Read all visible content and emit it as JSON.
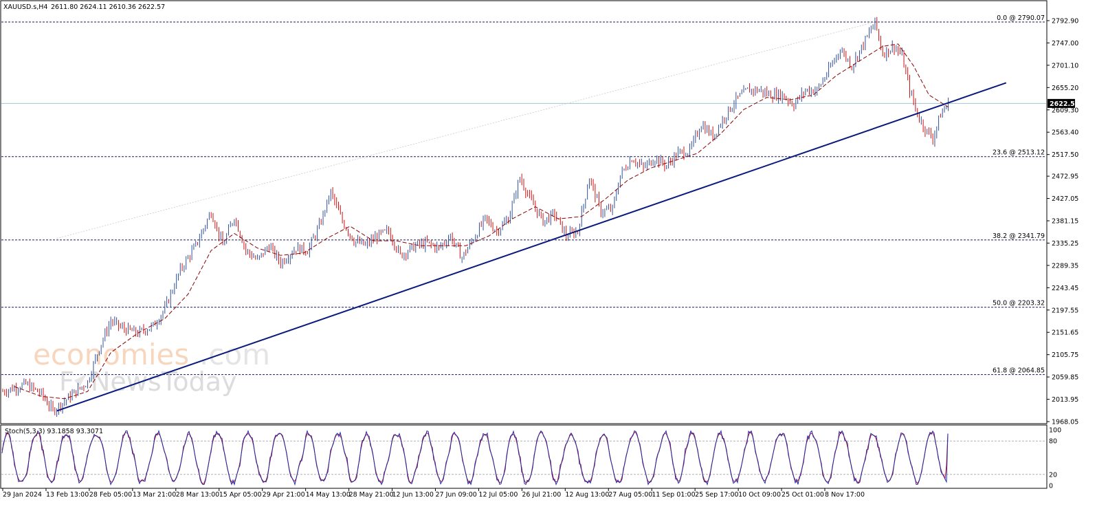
{
  "header": {
    "symbol": "XAUUSD.s,H4",
    "ohlc": "2611.80 2624.11 2610.36 2622.57"
  },
  "stoch_label": "Stoch(5,3,3) 93.1858 93.3071",
  "current_price": "2622.57",
  "watermark": {
    "line1_a": "economies",
    "line1_b": ".com",
    "line2_a": "F",
    "line2_b": "NewsToday"
  },
  "colors": {
    "bull_candle": "#2f4f9a",
    "bear_candle": "#d01010",
    "moving_average": "#8b0000",
    "trendline": "#0a1a7a",
    "fib_line": "#1a1a5a",
    "price_tag_bg": "#000000",
    "stoch_main": "#1a2aa8",
    "stoch_signal": "#cc1020"
  },
  "chart_data": {
    "type": "candlestick",
    "instrument": "XAUUSD.s",
    "timeframe": "H4",
    "price_axis": {
      "ylim": [
        1968.05,
        2792.9
      ],
      "tick_labels": [
        "2792.90",
        "2747.00",
        "2701.10",
        "2655.20",
        "2609.30",
        "2563.40",
        "2517.50",
        "2472.95",
        "2427.05",
        "2381.15",
        "2335.25",
        "2289.35",
        "2243.45",
        "2197.55",
        "2151.65",
        "2105.75",
        "2059.85",
        "2013.95",
        "1968.05"
      ]
    },
    "time_axis": {
      "tick_labels": [
        "29 Jan 2024",
        "13 Feb 13:00",
        "28 Feb 05:00",
        "13 Mar 21:00",
        "28 Mar 13:00",
        "15 Apr 05:00",
        "29 Apr 21:00",
        "14 May 13:00",
        "28 May 21:00",
        "12 Jun 13:00",
        "27 Jun 09:00",
        "12 Jul 05:00",
        "26 Jul 21:00",
        "12 Aug 13:00",
        "27 Aug 05:00",
        "11 Sep 01:00",
        "25 Sep 17:00",
        "10 Oct 09:00",
        "25 Oct 01:00",
        "8 Nov 17:00"
      ]
    },
    "fibonacci_levels": [
      {
        "label": "0.0 @ 2790.07",
        "value": 2790.07
      },
      {
        "label": "23.6 @ 2513.12",
        "value": 2513.12
      },
      {
        "label": "38.2 @ 2341.79",
        "value": 2341.79
      },
      {
        "label": "50.0 @ 2203.32",
        "value": 2203.32
      },
      {
        "label": "61.8 @ 2064.85",
        "value": 2064.85
      }
    ],
    "price_path": [
      [
        0,
        2030
      ],
      [
        6,
        2045
      ],
      [
        10,
        2025
      ],
      [
        13,
        1990
      ],
      [
        16,
        2010
      ],
      [
        19,
        2030
      ],
      [
        22,
        2050
      ],
      [
        25,
        2120
      ],
      [
        28,
        2175
      ],
      [
        31,
        2160
      ],
      [
        35,
        2150
      ],
      [
        39,
        2165
      ],
      [
        42,
        2200
      ],
      [
        46,
        2280
      ],
      [
        50,
        2330
      ],
      [
        54,
        2400
      ],
      [
        57,
        2330
      ],
      [
        60,
        2390
      ],
      [
        63,
        2320
      ],
      [
        66,
        2300
      ],
      [
        69,
        2330
      ],
      [
        72,
        2295
      ],
      [
        76,
        2325
      ],
      [
        79,
        2320
      ],
      [
        82,
        2370
      ],
      [
        85,
        2440
      ],
      [
        88,
        2380
      ],
      [
        91,
        2340
      ],
      [
        94,
        2330
      ],
      [
        97,
        2350
      ],
      [
        100,
        2360
      ],
      [
        103,
        2310
      ],
      [
        107,
        2330
      ],
      [
        110,
        2335
      ],
      [
        113,
        2325
      ],
      [
        116,
        2350
      ],
      [
        119,
        2305
      ],
      [
        122,
        2345
      ],
      [
        125,
        2385
      ],
      [
        128,
        2360
      ],
      [
        131,
        2385
      ],
      [
        134,
        2470
      ],
      [
        137,
        2420
      ],
      [
        140,
        2380
      ],
      [
        143,
        2395
      ],
      [
        146,
        2350
      ],
      [
        149,
        2360
      ],
      [
        152,
        2470
      ],
      [
        155,
        2400
      ],
      [
        158,
        2405
      ],
      [
        160,
        2475
      ],
      [
        163,
        2510
      ],
      [
        166,
        2490
      ],
      [
        169,
        2510
      ],
      [
        172,
        2495
      ],
      [
        175,
        2520
      ],
      [
        178,
        2525
      ],
      [
        181,
        2580
      ],
      [
        184,
        2555
      ],
      [
        187,
        2595
      ],
      [
        190,
        2630
      ],
      [
        193,
        2650
      ],
      [
        196,
        2650
      ],
      [
        199,
        2640
      ],
      [
        202,
        2640
      ],
      [
        205,
        2620
      ],
      [
        208,
        2650
      ],
      [
        211,
        2650
      ],
      [
        214,
        2690
      ],
      [
        217,
        2735
      ],
      [
        220,
        2700
      ],
      [
        223,
        2745
      ],
      [
        226,
        2790
      ],
      [
        228,
        2725
      ],
      [
        231,
        2740
      ],
      [
        233,
        2720
      ],
      [
        235,
        2650
      ],
      [
        237,
        2600
      ],
      [
        239,
        2570
      ],
      [
        241,
        2550
      ],
      [
        243,
        2600
      ],
      [
        245,
        2622.57
      ]
    ],
    "moving_average_path": [
      [
        3,
        2040
      ],
      [
        10,
        2020
      ],
      [
        16,
        2015
      ],
      [
        22,
        2030
      ],
      [
        28,
        2110
      ],
      [
        35,
        2150
      ],
      [
        42,
        2180
      ],
      [
        48,
        2230
      ],
      [
        54,
        2320
      ],
      [
        60,
        2355
      ],
      [
        66,
        2325
      ],
      [
        72,
        2310
      ],
      [
        78,
        2315
      ],
      [
        84,
        2345
      ],
      [
        90,
        2370
      ],
      [
        96,
        2340
      ],
      [
        102,
        2340
      ],
      [
        108,
        2330
      ],
      [
        114,
        2330
      ],
      [
        120,
        2330
      ],
      [
        126,
        2350
      ],
      [
        132,
        2385
      ],
      [
        138,
        2410
      ],
      [
        144,
        2385
      ],
      [
        150,
        2390
      ],
      [
        156,
        2425
      ],
      [
        162,
        2465
      ],
      [
        168,
        2490
      ],
      [
        174,
        2505
      ],
      [
        180,
        2520
      ],
      [
        186,
        2560
      ],
      [
        192,
        2610
      ],
      [
        198,
        2635
      ],
      [
        204,
        2630
      ],
      [
        210,
        2640
      ],
      [
        216,
        2680
      ],
      [
        222,
        2710
      ],
      [
        228,
        2740
      ],
      [
        232,
        2745
      ],
      [
        236,
        2700
      ],
      [
        240,
        2640
      ],
      [
        245,
        2615
      ]
    ],
    "trendline": [
      [
        14,
        1990
      ],
      [
        260,
        2665
      ]
    ],
    "stochastic": {
      "indicator": "Stoch(5,3,3)",
      "main": 93.1858,
      "signal": 93.3071,
      "ylim": [
        0,
        100
      ],
      "levels": [
        20,
        80
      ],
      "tick_labels": [
        "100",
        "80",
        "20",
        "0"
      ]
    }
  }
}
